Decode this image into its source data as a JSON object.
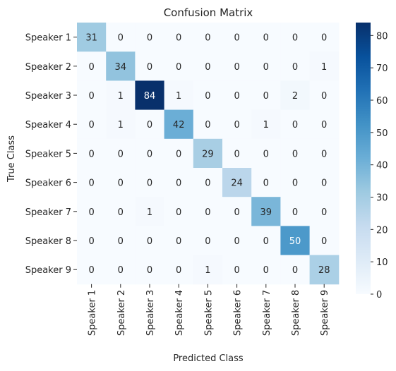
{
  "chart_data": {
    "type": "heatmap",
    "title": "Confusion Matrix",
    "xlabel": "Predicted Class",
    "ylabel": "True Class",
    "x_categories": [
      "Speaker 1",
      "Speaker 2",
      "Speaker 3",
      "Speaker 4",
      "Speaker 5",
      "Speaker 6",
      "Speaker 7",
      "Speaker 8",
      "Speaker 9"
    ],
    "y_categories": [
      "Speaker 1",
      "Speaker 2",
      "Speaker 3",
      "Speaker 4",
      "Speaker 5",
      "Speaker 6",
      "Speaker 7",
      "Speaker 8",
      "Speaker 9"
    ],
    "values": [
      [
        31,
        0,
        0,
        0,
        0,
        0,
        0,
        0,
        0
      ],
      [
        0,
        34,
        0,
        0,
        0,
        0,
        0,
        0,
        1
      ],
      [
        0,
        1,
        84,
        1,
        0,
        0,
        0,
        2,
        0
      ],
      [
        0,
        1,
        0,
        42,
        0,
        0,
        1,
        0,
        0
      ],
      [
        0,
        0,
        0,
        0,
        29,
        0,
        0,
        0,
        0
      ],
      [
        0,
        0,
        0,
        0,
        0,
        24,
        0,
        0,
        0
      ],
      [
        0,
        0,
        1,
        0,
        0,
        0,
        39,
        0,
        0
      ],
      [
        0,
        0,
        0,
        0,
        0,
        0,
        0,
        50,
        0
      ],
      [
        0,
        0,
        0,
        0,
        1,
        0,
        0,
        0,
        28
      ]
    ],
    "colormap": "Blues",
    "colorbar": {
      "min": 0,
      "max": 84,
      "ticks": [
        0,
        10,
        20,
        30,
        40,
        50,
        60,
        70,
        80
      ]
    },
    "colors": {
      "low": "#f7fbff",
      "high": "#08306b",
      "text_dark": "#262626",
      "text_light": "#ffffff"
    }
  }
}
